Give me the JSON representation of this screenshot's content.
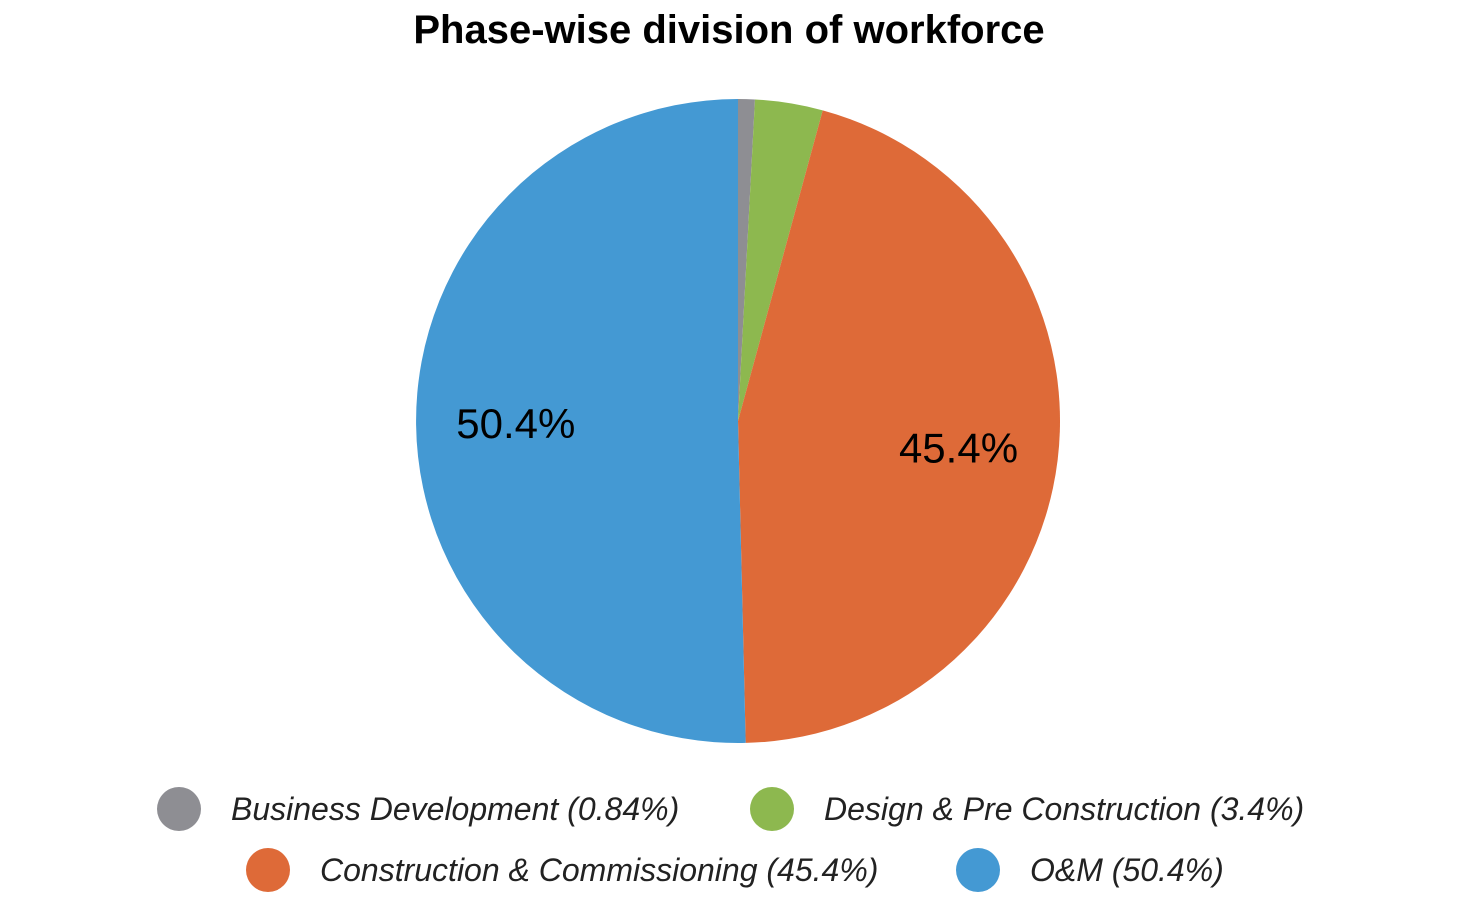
{
  "chart_data": {
    "type": "pie",
    "title": "Phase-wise division of workforce",
    "slices": [
      {
        "name": "Business Development",
        "value": 0.84,
        "color": "#8e8e93",
        "legend_label": "Business Development (0.84%)",
        "label": ""
      },
      {
        "name": "Design & Pre Construction",
        "value": 3.4,
        "color": "#8db84f",
        "legend_label": "Design & Pre Construction (3.4%)",
        "label": ""
      },
      {
        "name": "Construction & Commissioning",
        "value": 45.4,
        "color": "#de6a38",
        "legend_label": "Construction & Commissioning (45.4%)",
        "label": "45.4%"
      },
      {
        "name": "O&M",
        "value": 50.4,
        "color": "#4499d3",
        "legend_label": "O&M (50.4%)",
        "label": "50.4%"
      }
    ],
    "start_angle": "top",
    "direction": "clockwise",
    "legend_position": "bottom"
  }
}
